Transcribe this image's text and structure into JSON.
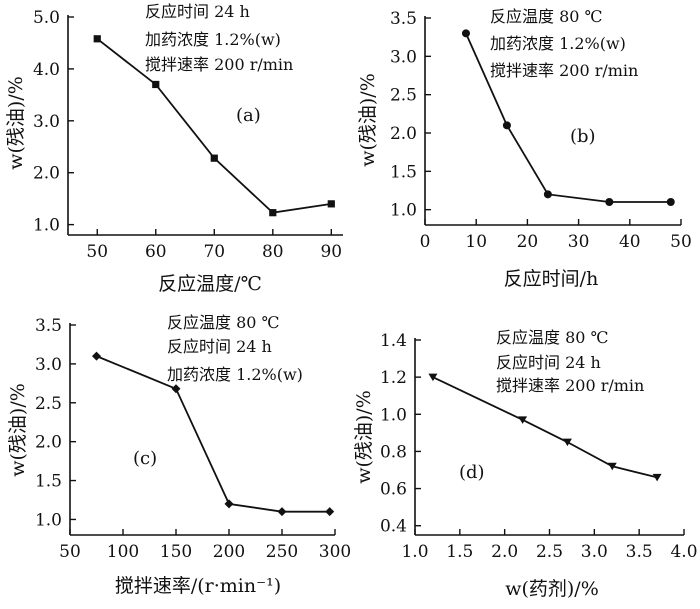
{
  "chart_data": [
    {
      "type": "line",
      "panel_label": "(a)",
      "xlabel": "反应温度/℃",
      "ylabel": "w(残油)/%",
      "annotations": [
        "反应时间  24 h",
        "加药浓度  1.2%(w)",
        "搅拌速率  200 r/min"
      ],
      "xlim": [
        45,
        92
      ],
      "ylim": [
        0.8,
        5.0
      ],
      "x_ticks": [
        50,
        60,
        70,
        80,
        90
      ],
      "x_tick_labels": [
        "50",
        "60",
        "70",
        "80",
        "90"
      ],
      "y_ticks": [
        1.0,
        2.0,
        3.0,
        4.0,
        5.0
      ],
      "y_tick_labels": [
        "1.0",
        "2.0",
        "3.0",
        "4.0",
        "5.0"
      ],
      "marker": "square",
      "x": [
        50,
        60,
        70,
        80,
        90
      ],
      "y": [
        4.58,
        3.7,
        2.28,
        1.23,
        1.4
      ]
    },
    {
      "type": "line",
      "panel_label": "(b)",
      "xlabel": "反应时间/h",
      "ylabel": "w(残油)/%",
      "annotations": [
        "反应温度  80 ℃",
        "加药浓度  1.2%(w)",
        "搅拌速率  200 r/min"
      ],
      "xlim": [
        0,
        50
      ],
      "ylim": [
        0.8,
        3.5
      ],
      "x_ticks": [
        0,
        10,
        20,
        30,
        40,
        50
      ],
      "x_tick_labels": [
        "0",
        "10",
        "20",
        "30",
        "40",
        "50"
      ],
      "y_ticks": [
        1.0,
        1.5,
        2.0,
        2.5,
        3.0,
        3.5
      ],
      "y_tick_labels": [
        "1.0",
        "1.5",
        "2.0",
        "2.5",
        "3.0",
        "3.5"
      ],
      "marker": "circle",
      "x": [
        8,
        16,
        24,
        36,
        48
      ],
      "y": [
        3.3,
        2.1,
        1.2,
        1.1,
        1.1
      ]
    },
    {
      "type": "line",
      "panel_label": "(c)",
      "xlabel": "搅拌速率/(r·min⁻¹)",
      "ylabel": "w(残油)/%",
      "annotations": [
        "反应温度  80 ℃",
        "反应时间  24 h",
        "加药浓度  1.2%(w)"
      ],
      "xlim": [
        50,
        300
      ],
      "ylim": [
        0.8,
        3.5
      ],
      "x_ticks": [
        50,
        100,
        150,
        200,
        250,
        300
      ],
      "x_tick_labels": [
        "50",
        "100",
        "150",
        "200",
        "250",
        "300"
      ],
      "y_ticks": [
        1.0,
        1.5,
        2.0,
        2.5,
        3.0,
        3.5
      ],
      "y_tick_labels": [
        "1.0",
        "1.5",
        "2.0",
        "2.5",
        "3.0",
        "3.5"
      ],
      "marker": "diamond",
      "x": [
        75,
        150,
        200,
        250,
        295
      ],
      "y": [
        3.1,
        2.68,
        1.2,
        1.1,
        1.1
      ]
    },
    {
      "type": "line",
      "panel_label": "(d)",
      "xlabel": "w(药剂)/%",
      "ylabel": "w(残油)/%",
      "annotations": [
        "反应温度  80 ℃",
        "反应时间  24 h",
        "搅拌速率  200 r/min"
      ],
      "xlim": [
        1.0,
        4.0
      ],
      "ylim": [
        0.35,
        1.4
      ],
      "x_ticks": [
        1.0,
        1.5,
        2.0,
        2.5,
        3.0,
        3.5,
        4.0
      ],
      "x_tick_labels": [
        "1.0",
        "1.5",
        "2.0",
        "2.5",
        "3.0",
        "3.5",
        "4.0"
      ],
      "y_ticks": [
        0.4,
        0.6,
        0.8,
        1.0,
        1.2,
        1.4
      ],
      "y_tick_labels": [
        "0.4",
        "0.6",
        "0.8",
        "1.0",
        "1.2",
        "1.4"
      ],
      "marker": "triangle-down",
      "x": [
        1.2,
        2.2,
        2.7,
        3.2,
        3.7
      ],
      "y": [
        1.2,
        0.97,
        0.85,
        0.72,
        0.66
      ]
    }
  ]
}
